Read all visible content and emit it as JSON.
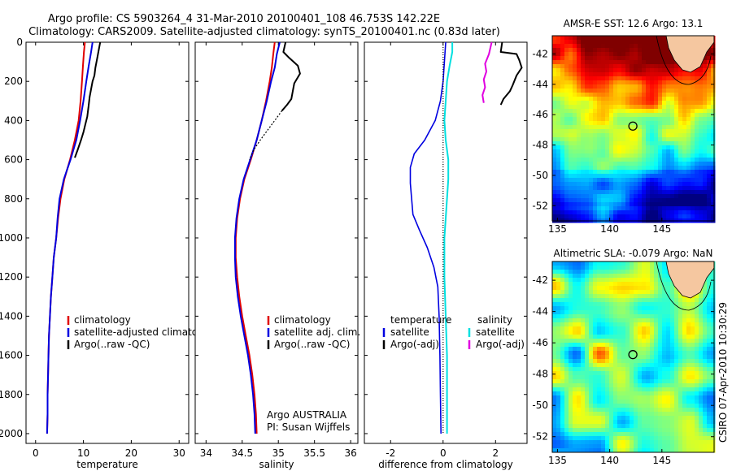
{
  "header": {
    "title_line1": "Argo profile: CS 5903264_4 31-Mar-2010 20100401_108 46.753S 142.22E",
    "title_line2": "Climatology: CARS2009. Satellite-adjusted climatology: synTS_20100401.nc (0.83d later)"
  },
  "side_stamp": "CSIRO 07-Apr-2010 10:30:29",
  "chart_data": [
    {
      "id": "temperature",
      "type": "line",
      "xlabel": "temperature",
      "ylabel": "",
      "xlim": [
        -2,
        32
      ],
      "ylim": [
        2050,
        0
      ],
      "xticks": [
        0,
        10,
        20,
        30
      ],
      "yticks": [
        0,
        200,
        400,
        600,
        800,
        1000,
        1200,
        1400,
        1600,
        1800,
        2000
      ],
      "legend": {
        "placement": "lower-right",
        "entries": [
          {
            "label": "climatology",
            "color": "#e00000"
          },
          {
            "label": "satellite-adjusted climatology",
            "color": "#0000e0"
          },
          {
            "label": "Argo(..raw -QC)",
            "color": "#000000"
          }
        ]
      },
      "series": [
        {
          "color": "#e00000",
          "width": 2,
          "points": [
            [
              10.3,
              0
            ],
            [
              10.1,
              50
            ],
            [
              9.9,
              120
            ],
            [
              9.7,
              200
            ],
            [
              9.4,
              300
            ],
            [
              9,
              400
            ],
            [
              8.2,
              500
            ],
            [
              7.2,
              600
            ],
            [
              6,
              700
            ],
            [
              5.2,
              800
            ],
            [
              4.7,
              900
            ],
            [
              4.3,
              1000
            ],
            [
              3.8,
              1100
            ],
            [
              3.5,
              1200
            ],
            [
              3.2,
              1300
            ],
            [
              3,
              1400
            ],
            [
              2.8,
              1500
            ],
            [
              2.7,
              1600
            ],
            [
              2.6,
              1700
            ],
            [
              2.5,
              1800
            ],
            [
              2.5,
              1900
            ],
            [
              2.4,
              2000
            ]
          ]
        },
        {
          "color": "#0000e0",
          "width": 2,
          "points": [
            [
              11.9,
              0
            ],
            [
              11.6,
              50
            ],
            [
              11.1,
              120
            ],
            [
              10.6,
              200
            ],
            [
              10,
              300
            ],
            [
              9.3,
              400
            ],
            [
              8.5,
              500
            ],
            [
              7.3,
              600
            ],
            [
              5.9,
              700
            ],
            [
              5,
              800
            ],
            [
              4.6,
              900
            ],
            [
              4.3,
              1000
            ],
            [
              3.8,
              1100
            ],
            [
              3.5,
              1200
            ],
            [
              3.2,
              1300
            ],
            [
              3,
              1400
            ],
            [
              2.8,
              1500
            ],
            [
              2.7,
              1600
            ],
            [
              2.6,
              1700
            ],
            [
              2.5,
              1800
            ],
            [
              2.5,
              1900
            ],
            [
              2.4,
              2000
            ]
          ]
        },
        {
          "color": "#000000",
          "width": 2,
          "points": [
            [
              13.5,
              0
            ],
            [
              13.2,
              40
            ],
            [
              12.9,
              80
            ],
            [
              12.5,
              130
            ],
            [
              12.3,
              170
            ],
            [
              11.9,
              200
            ],
            [
              11.6,
              240
            ],
            [
              11.3,
              280
            ],
            [
              11.1,
              320
            ],
            [
              10.8,
              380
            ],
            [
              10.4,
              420
            ],
            [
              10,
              460
            ],
            [
              9.5,
              500
            ],
            [
              8.8,
              550
            ],
            [
              8.2,
              590
            ]
          ]
        }
      ]
    },
    {
      "id": "salinity",
      "type": "line",
      "xlabel": "salinity",
      "ylabel": "",
      "xlim": [
        33.85,
        36.1
      ],
      "ylim": [
        2050,
        0
      ],
      "xticks": [
        34,
        34.5,
        35,
        35.5,
        36
      ],
      "yticks": [
        0,
        200,
        400,
        600,
        800,
        1000,
        1200,
        1400,
        1600,
        1800,
        2000
      ],
      "legend": {
        "placement": "lower-right",
        "entries": [
          {
            "label": "climatology",
            "color": "#e00000"
          },
          {
            "label": "satellite adj. clim.",
            "color": "#0000e0"
          },
          {
            "label": "Argo(..raw -QC)",
            "color": "#000000"
          }
        ]
      },
      "annotations": [
        "Argo AUSTRALIA",
        "PI: Susan Wijffels"
      ],
      "series": [
        {
          "color": "#e00000",
          "width": 2,
          "points": [
            [
              34.95,
              0
            ],
            [
              34.93,
              60
            ],
            [
              34.91,
              130
            ],
            [
              34.88,
              200
            ],
            [
              34.83,
              300
            ],
            [
              34.77,
              400
            ],
            [
              34.7,
              500
            ],
            [
              34.62,
              600
            ],
            [
              34.53,
              700
            ],
            [
              34.47,
              800
            ],
            [
              34.43,
              900
            ],
            [
              34.41,
              1000
            ],
            [
              34.41,
              1100
            ],
            [
              34.43,
              1200
            ],
            [
              34.46,
              1300
            ],
            [
              34.5,
              1400
            ],
            [
              34.55,
              1500
            ],
            [
              34.6,
              1600
            ],
            [
              34.64,
              1700
            ],
            [
              34.67,
              1800
            ],
            [
              34.69,
              1900
            ],
            [
              34.7,
              2000
            ]
          ]
        },
        {
          "color": "#0000e0",
          "width": 2,
          "points": [
            [
              35.02,
              0
            ],
            [
              34.98,
              60
            ],
            [
              34.95,
              130
            ],
            [
              34.9,
              200
            ],
            [
              34.84,
              300
            ],
            [
              34.77,
              400
            ],
            [
              34.7,
              500
            ],
            [
              34.61,
              600
            ],
            [
              34.52,
              700
            ],
            [
              34.46,
              800
            ],
            [
              34.42,
              900
            ],
            [
              34.4,
              1000
            ],
            [
              34.4,
              1100
            ],
            [
              34.41,
              1200
            ],
            [
              34.44,
              1300
            ],
            [
              34.48,
              1400
            ],
            [
              34.53,
              1500
            ],
            [
              34.58,
              1600
            ],
            [
              34.62,
              1700
            ],
            [
              34.65,
              1800
            ],
            [
              34.67,
              1900
            ],
            [
              34.68,
              2000
            ]
          ]
        },
        {
          "color": "#000000",
          "width": 2,
          "points": [
            [
              35.1,
              0
            ],
            [
              35.07,
              50
            ],
            [
              35.15,
              80
            ],
            [
              35.27,
              120
            ],
            [
              35.3,
              160
            ],
            [
              35.22,
              210
            ],
            [
              35.2,
              250
            ],
            [
              35.18,
              290
            ],
            [
              35.12,
              320
            ],
            [
              35.05,
              350
            ]
          ]
        },
        {
          "color": "#000000",
          "width": 1.2,
          "dash": "2,2",
          "points": [
            [
              35.05,
              350
            ],
            [
              34.95,
              400
            ],
            [
              34.85,
              450
            ],
            [
              34.75,
              500
            ],
            [
              34.66,
              550
            ],
            [
              34.6,
              600
            ]
          ]
        }
      ]
    },
    {
      "id": "difference",
      "type": "line",
      "xlabel": "difference from climatology",
      "ylabel": "",
      "xlim": [
        -3,
        3.2
      ],
      "ylim": [
        2050,
        0
      ],
      "xticks": [
        -2,
        0,
        2
      ],
      "yticks": [
        0,
        200,
        400,
        600,
        800,
        1000,
        1200,
        1400,
        1600,
        1800,
        2000
      ],
      "legend": {
        "placement": "lower-center",
        "groups": [
          {
            "title": "temperature",
            "entries": [
              {
                "label": "satellite",
                "color": "#0000e0"
              },
              {
                "label": "Argo(-adj)",
                "color": "#000000"
              }
            ]
          },
          {
            "title": "salinity",
            "entries": [
              {
                "label": "satellite",
                "color": "#00e0e0"
              },
              {
                "label": "Argo(-adj)",
                "color": "#e000e0"
              }
            ]
          }
        ]
      },
      "series": [
        {
          "color": "#0000e0",
          "width": 1.6,
          "points": [
            [
              0.1,
              0
            ],
            [
              0.05,
              100
            ],
            [
              0,
              200
            ],
            [
              -0.1,
              300
            ],
            [
              -0.3,
              400
            ],
            [
              -0.7,
              500
            ],
            [
              -1.1,
              570
            ],
            [
              -1.25,
              640
            ],
            [
              -1.25,
              720
            ],
            [
              -1.2,
              800
            ],
            [
              -1.15,
              880
            ],
            [
              -0.9,
              960
            ],
            [
              -0.6,
              1050
            ],
            [
              -0.35,
              1150
            ],
            [
              -0.2,
              1250
            ],
            [
              -0.15,
              1400
            ],
            [
              -0.12,
              1600
            ],
            [
              -0.1,
              1800
            ],
            [
              -0.08,
              2000
            ]
          ]
        },
        {
          "color": "#00e0e0",
          "width": 2,
          "points": [
            [
              0.35,
              0
            ],
            [
              0.35,
              50
            ],
            [
              0.25,
              120
            ],
            [
              0.15,
              200
            ],
            [
              0.1,
              300
            ],
            [
              0.05,
              400
            ],
            [
              0.1,
              500
            ],
            [
              0.2,
              600
            ],
            [
              0.2,
              700
            ],
            [
              0.15,
              800
            ],
            [
              0.1,
              900
            ],
            [
              0.05,
              1000
            ],
            [
              0.05,
              1200
            ],
            [
              0.1,
              1400
            ],
            [
              0.15,
              1600
            ],
            [
              0.15,
              1800
            ],
            [
              0.15,
              2000
            ]
          ]
        },
        {
          "color": "#000000",
          "width": 1.2,
          "dash": "1,2",
          "points": [
            [
              0,
              0
            ],
            [
              0,
              2000
            ]
          ]
        },
        {
          "color": "#e000e0",
          "width": 2,
          "points": [
            [
              1.85,
              0
            ],
            [
              1.75,
              60
            ],
            [
              1.6,
              110
            ],
            [
              1.65,
              150
            ],
            [
              1.55,
              190
            ],
            [
              1.6,
              230
            ],
            [
              1.5,
              270
            ],
            [
              1.55,
              310
            ]
          ]
        },
        {
          "color": "#000000",
          "width": 2,
          "points": [
            [
              2.25,
              0
            ],
            [
              2.2,
              50
            ],
            [
              2.8,
              60
            ],
            [
              2.9,
              90
            ],
            [
              3,
              130
            ],
            [
              2.8,
              170
            ],
            [
              2.65,
              220
            ],
            [
              2.55,
              250
            ],
            [
              2.3,
              290
            ],
            [
              2.2,
              320
            ]
          ]
        }
      ]
    }
  ],
  "maps": [
    {
      "id": "sst",
      "title": "AMSR-E SST: 12.6 Argo: 13.1",
      "lon_range": [
        134.5,
        150
      ],
      "lat_range": [
        -53,
        -40.8
      ],
      "xticks": [
        135,
        140,
        145
      ],
      "yticks": [
        -42,
        -44,
        -46,
        -48,
        -50,
        -52
      ],
      "marker": {
        "lon": 142.22,
        "lat": -46.753
      },
      "colormap": "sst"
    },
    {
      "id": "sla",
      "title": "Altimetric SLA: -0.079 Argo: NaN",
      "lon_range": [
        134.5,
        150
      ],
      "lat_range": [
        -53,
        -40.8
      ],
      "xticks": [
        135,
        140,
        145
      ],
      "yticks": [
        -42,
        -44,
        -46,
        -48,
        -50,
        -52
      ],
      "marker": {
        "lon": 142.22,
        "lat": -46.753
      },
      "colormap": "sla"
    }
  ]
}
